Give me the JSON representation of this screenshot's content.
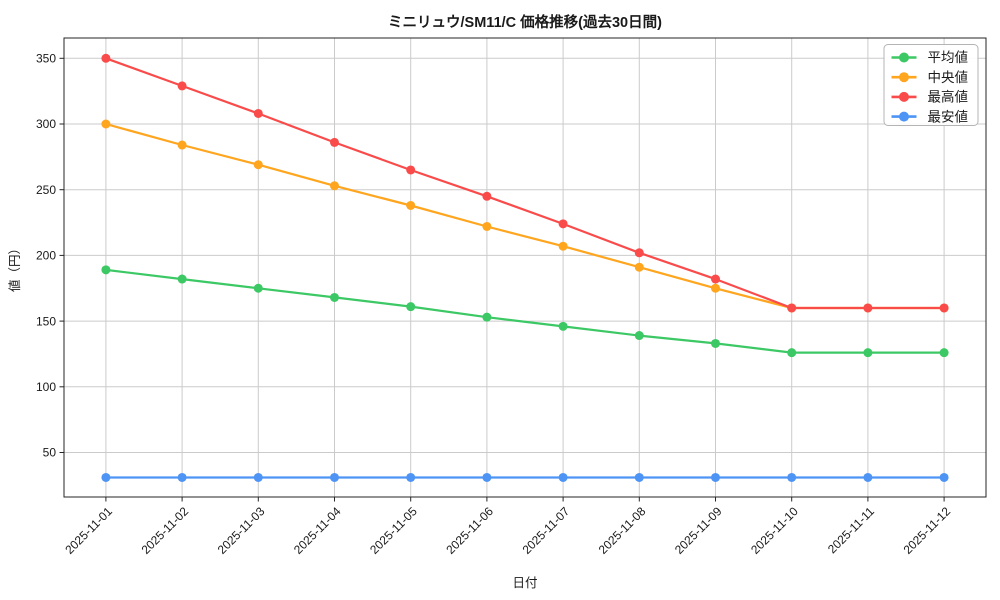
{
  "chart_data": {
    "type": "line",
    "title": "ミニリュウ/SM11/C 価格推移(過去30日間)",
    "xlabel": "日付",
    "ylabel": "値（円）",
    "x_labels": [
      "2025-11-01",
      "2025-11-02",
      "2025-11-03",
      "2025-11-04",
      "2025-11-05",
      "2025-11-06",
      "2025-11-07",
      "2025-11-08",
      "2025-11-09",
      "2025-11-10",
      "2025-11-11",
      "2025-11-12"
    ],
    "y_ticks": [
      50,
      100,
      150,
      200,
      250,
      300,
      350
    ],
    "ylim": [
      16,
      365
    ],
    "grid": true,
    "legend_position": "top-right",
    "colors": {
      "grid": "#cbcbcb",
      "spine": "#262626",
      "legend_border": "#b4b4b4"
    },
    "series": [
      {
        "name": "平均値",
        "color": "#3cc864",
        "values": [
          189,
          182,
          175,
          168,
          161,
          153,
          146,
          139,
          133,
          126,
          126,
          126
        ]
      },
      {
        "name": "中央値",
        "color": "#ffa51e",
        "values": [
          300,
          284,
          269,
          253,
          238,
          222,
          207,
          191,
          175,
          160,
          160,
          160
        ]
      },
      {
        "name": "最高値",
        "color": "#fa4b4b",
        "values": [
          350,
          329,
          308,
          286,
          265,
          245,
          224,
          202,
          182,
          160,
          160,
          160
        ]
      },
      {
        "name": "最安値",
        "color": "#4d94f5",
        "values": [
          31,
          31,
          31,
          31,
          31,
          31,
          31,
          31,
          31,
          31,
          31,
          31
        ]
      }
    ]
  }
}
